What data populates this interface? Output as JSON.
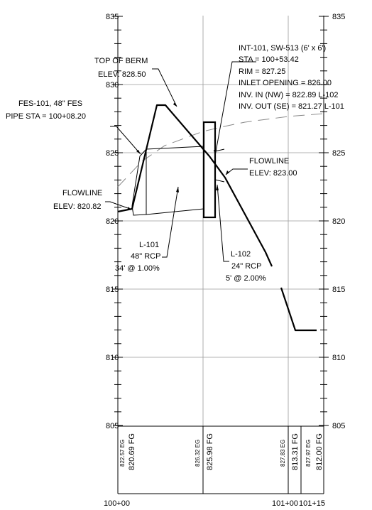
{
  "elevation_labels": [
    "835",
    "830",
    "825",
    "820",
    "815",
    "810",
    "805"
  ],
  "stations": [
    "100+00",
    "101+00",
    "101+15"
  ],
  "profile_table": {
    "existing_grade": [
      "822.57 EG",
      "826.32 EG",
      "827.83 EG",
      "827.97 EG"
    ],
    "finished_grade": [
      "820.69 FG",
      "825.98 FG",
      "813.31 FG",
      "812.00 FG"
    ]
  },
  "callouts": {
    "berm": [
      "TOP OF BERM",
      "ELEV: 828.50"
    ],
    "fes": [
      "FES-101, 48\" FES",
      "PIPE STA = 100+08.20"
    ],
    "flowline_left": [
      "FLOWLINE",
      "ELEV: 820.82"
    ],
    "inlet": [
      "INT-101, SW-513 (6' x 6')",
      "STA = 100+53.42",
      "RIM = 827.25",
      "INLET OPENING = 826.00",
      "INV. IN (NW) = 822.89 L-102",
      "INV. OUT (SE) = 821.27 L-101"
    ],
    "flowline_right": [
      "FLOWLINE",
      "ELEV: 823.00"
    ],
    "l101": [
      "L-101",
      "48\" RCP",
      "34' @ 1.00%"
    ],
    "l102": [
      "L-102",
      "24\" RCP",
      "5' @ 2.00%"
    ]
  },
  "colors": {
    "ink": "#000000",
    "grid": "#9a9a9a",
    "dash": "#888888"
  }
}
